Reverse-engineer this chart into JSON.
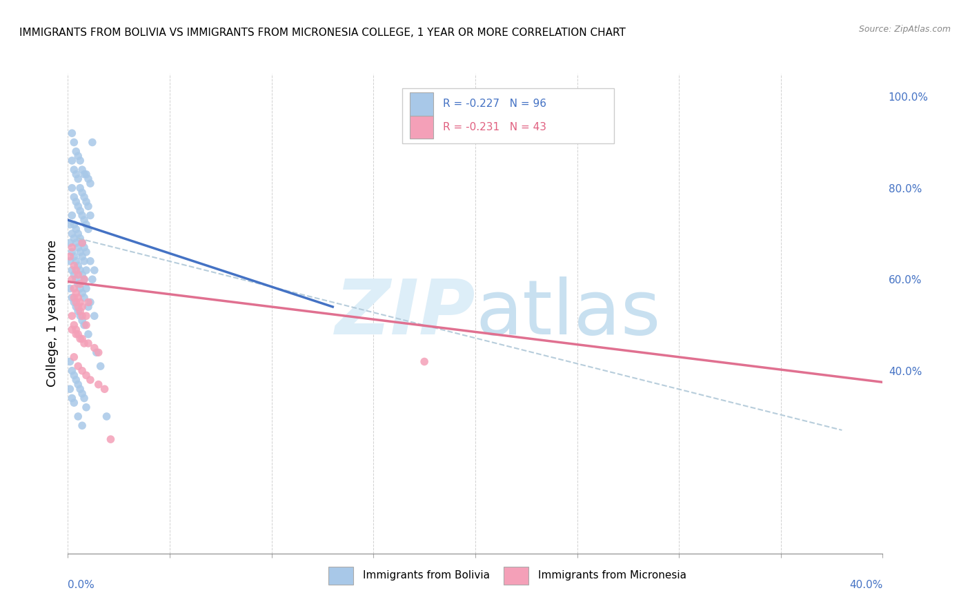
{
  "title": "IMMIGRANTS FROM BOLIVIA VS IMMIGRANTS FROM MICRONESIA COLLEGE, 1 YEAR OR MORE CORRELATION CHART",
  "source": "Source: ZipAtlas.com",
  "ylabel": "College, 1 year or more",
  "R_bolivia": -0.227,
  "N_bolivia": 96,
  "R_micronesia": -0.231,
  "N_micronesia": 43,
  "color_bolivia": "#a8c8e8",
  "color_micronesia": "#f4a0b8",
  "color_bolivia_line": "#4472c4",
  "color_micronesia_line": "#e07090",
  "color_dashed": "#b0c8d8",
  "legend_bolivia": "Immigrants from Bolivia",
  "legend_micronesia": "Immigrants from Micronesia",
  "xmin": 0.0,
  "xmax": 0.4,
  "ymin": 0.0,
  "ymax": 1.05,
  "bolivia_scatter_x": [
    0.002,
    0.003,
    0.004,
    0.005,
    0.006,
    0.007,
    0.008,
    0.009,
    0.01,
    0.011,
    0.002,
    0.003,
    0.004,
    0.005,
    0.006,
    0.007,
    0.008,
    0.009,
    0.01,
    0.011,
    0.002,
    0.003,
    0.004,
    0.005,
    0.006,
    0.007,
    0.008,
    0.009,
    0.01,
    0.012,
    0.002,
    0.003,
    0.004,
    0.005,
    0.006,
    0.007,
    0.008,
    0.009,
    0.011,
    0.013,
    0.001,
    0.002,
    0.003,
    0.004,
    0.005,
    0.006,
    0.007,
    0.008,
    0.009,
    0.012,
    0.001,
    0.002,
    0.003,
    0.004,
    0.005,
    0.006,
    0.007,
    0.008,
    0.009,
    0.011,
    0.001,
    0.002,
    0.003,
    0.004,
    0.005,
    0.006,
    0.007,
    0.008,
    0.01,
    0.013,
    0.001,
    0.002,
    0.003,
    0.004,
    0.005,
    0.006,
    0.007,
    0.008,
    0.01,
    0.014,
    0.001,
    0.002,
    0.003,
    0.004,
    0.005,
    0.006,
    0.007,
    0.008,
    0.009,
    0.016,
    0.001,
    0.002,
    0.003,
    0.005,
    0.007,
    0.019
  ],
  "bolivia_scatter_y": [
    0.92,
    0.9,
    0.88,
    0.87,
    0.86,
    0.84,
    0.83,
    0.83,
    0.82,
    0.81,
    0.86,
    0.84,
    0.83,
    0.82,
    0.8,
    0.79,
    0.78,
    0.77,
    0.76,
    0.74,
    0.8,
    0.78,
    0.77,
    0.76,
    0.75,
    0.74,
    0.73,
    0.72,
    0.71,
    0.9,
    0.74,
    0.72,
    0.71,
    0.7,
    0.69,
    0.68,
    0.67,
    0.66,
    0.64,
    0.62,
    0.72,
    0.7,
    0.69,
    0.68,
    0.67,
    0.66,
    0.65,
    0.64,
    0.62,
    0.6,
    0.68,
    0.66,
    0.65,
    0.64,
    0.63,
    0.62,
    0.61,
    0.6,
    0.58,
    0.55,
    0.64,
    0.62,
    0.61,
    0.6,
    0.59,
    0.58,
    0.57,
    0.56,
    0.54,
    0.52,
    0.58,
    0.56,
    0.55,
    0.54,
    0.53,
    0.52,
    0.51,
    0.5,
    0.48,
    0.44,
    0.42,
    0.4,
    0.39,
    0.38,
    0.37,
    0.36,
    0.35,
    0.34,
    0.32,
    0.41,
    0.36,
    0.34,
    0.33,
    0.3,
    0.28,
    0.3
  ],
  "micronesia_scatter_x": [
    0.001,
    0.002,
    0.003,
    0.004,
    0.005,
    0.006,
    0.007,
    0.008,
    0.002,
    0.003,
    0.004,
    0.005,
    0.006,
    0.007,
    0.009,
    0.002,
    0.003,
    0.004,
    0.005,
    0.006,
    0.008,
    0.01,
    0.003,
    0.004,
    0.005,
    0.006,
    0.007,
    0.009,
    0.002,
    0.004,
    0.007,
    0.01,
    0.013,
    0.015,
    0.003,
    0.005,
    0.007,
    0.009,
    0.011,
    0.015,
    0.018,
    0.021,
    0.175
  ],
  "micronesia_scatter_y": [
    0.65,
    0.67,
    0.63,
    0.62,
    0.61,
    0.59,
    0.68,
    0.6,
    0.6,
    0.58,
    0.57,
    0.56,
    0.55,
    0.54,
    0.52,
    0.52,
    0.5,
    0.49,
    0.48,
    0.47,
    0.46,
    0.55,
    0.56,
    0.55,
    0.54,
    0.53,
    0.52,
    0.5,
    0.49,
    0.48,
    0.47,
    0.46,
    0.45,
    0.44,
    0.43,
    0.41,
    0.4,
    0.39,
    0.38,
    0.37,
    0.36,
    0.25,
    0.42
  ],
  "bolivia_trendline_x": [
    0.0,
    0.13
  ],
  "bolivia_trendline_y": [
    0.73,
    0.54
  ],
  "micronesia_trendline_x": [
    0.0,
    0.4
  ],
  "micronesia_trendline_y": [
    0.595,
    0.375
  ],
  "dashed_line_x": [
    0.005,
    0.38
  ],
  "dashed_line_y": [
    0.69,
    0.27
  ]
}
